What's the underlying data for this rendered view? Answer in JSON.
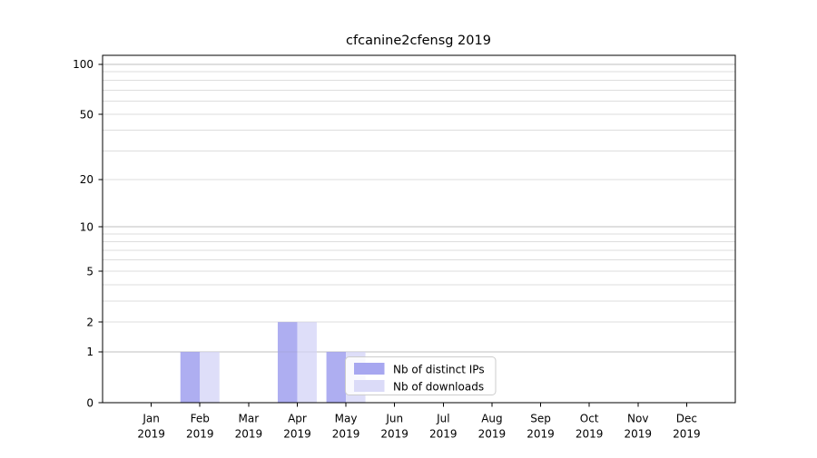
{
  "chart_data": {
    "type": "bar",
    "title": "cfcanine2cfensg 2019",
    "categories": [
      "Jan",
      "Feb",
      "Mar",
      "Apr",
      "May",
      "Jun",
      "Jul",
      "Aug",
      "Sep",
      "Oct",
      "Nov",
      "Dec"
    ],
    "x_tick_second_line": "2019",
    "series": [
      {
        "name": "Nb of distinct IPs",
        "color": "#a7a7f0",
        "values": [
          0,
          1,
          0,
          2,
          1,
          0,
          0,
          0,
          0,
          0,
          0,
          0
        ]
      },
      {
        "name": "Nb of downloads",
        "color": "#dbdbf8",
        "values": [
          0,
          1,
          0,
          2,
          1,
          0,
          0,
          0,
          0,
          0,
          0,
          0
        ]
      }
    ],
    "xlabel": "",
    "ylabel": "",
    "scale": "log1p",
    "ylim": [
      0,
      113
    ],
    "yticks": [
      0,
      1,
      2,
      5,
      10,
      20,
      50,
      100
    ],
    "major_gridlines": [
      1,
      10,
      100
    ],
    "minor_gridlines": [
      2,
      3,
      4,
      5,
      6,
      7,
      8,
      9,
      20,
      30,
      40,
      50,
      60,
      70,
      80,
      90
    ],
    "grid": true,
    "legend_position": "lower center",
    "colors": {
      "major_grid": "#c8c8c8",
      "minor_grid": "#eaeaea",
      "axis": "#000000",
      "legend_border": "#cccccc"
    }
  }
}
